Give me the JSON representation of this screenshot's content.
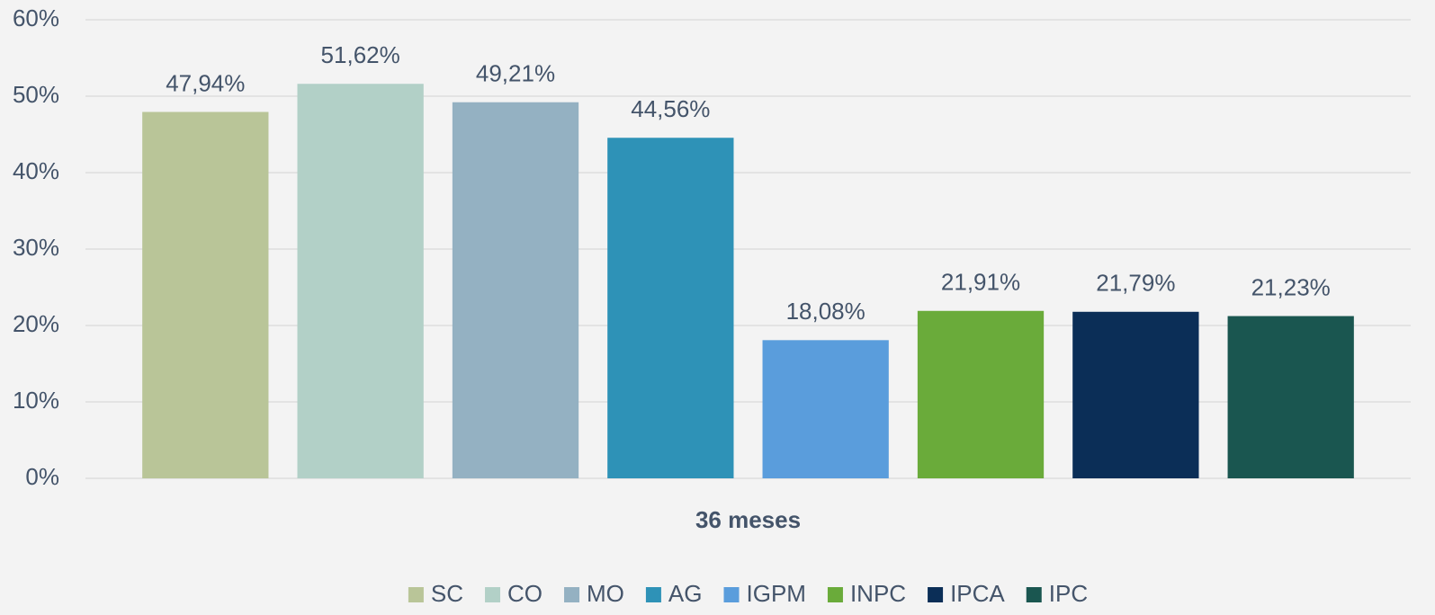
{
  "chart_data": {
    "type": "bar",
    "categories": [
      "36 meses"
    ],
    "series": [
      {
        "name": "SC",
        "color": "#b9c598",
        "values": [
          47.94
        ],
        "value_labels": [
          "47,94%"
        ]
      },
      {
        "name": "CO",
        "color": "#b2d0c7",
        "values": [
          51.62
        ],
        "value_labels": [
          "51,62%"
        ]
      },
      {
        "name": "MO",
        "color": "#94b1c2",
        "values": [
          49.21
        ],
        "value_labels": [
          "49,21%"
        ]
      },
      {
        "name": "AG",
        "color": "#2e92b7",
        "values": [
          44.56
        ],
        "value_labels": [
          "44,56%"
        ]
      },
      {
        "name": "IGPM",
        "color": "#5a9ddc",
        "values": [
          18.08
        ],
        "value_labels": [
          "18,08%"
        ]
      },
      {
        "name": "INPC",
        "color": "#6aab3a",
        "values": [
          21.91
        ],
        "value_labels": [
          "21,91%"
        ]
      },
      {
        "name": "IPCA",
        "color": "#0b2e57",
        "values": [
          21.79
        ],
        "value_labels": [
          "21,79%"
        ]
      },
      {
        "name": "IPC",
        "color": "#1a5650",
        "values": [
          21.23
        ],
        "value_labels": [
          "21,23%"
        ]
      }
    ],
    "ylim": [
      0,
      60
    ],
    "yticks": [
      {
        "value": 0,
        "label": "0%"
      },
      {
        "value": 10,
        "label": "10%"
      },
      {
        "value": 20,
        "label": "20%"
      },
      {
        "value": 30,
        "label": "30%"
      },
      {
        "value": 40,
        "label": "40%"
      },
      {
        "value": 50,
        "label": "50%"
      },
      {
        "value": 60,
        "label": "60%"
      }
    ],
    "grid": true,
    "legend": "bottom"
  }
}
